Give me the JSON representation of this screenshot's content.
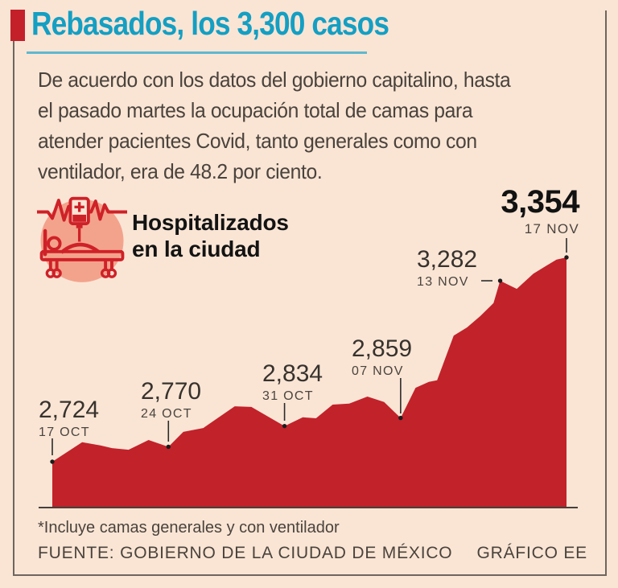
{
  "header": {
    "title": "Rebasados, los 3,300 casos",
    "title_color": "#149fc3",
    "bullet_color": "#c3202a"
  },
  "intro": {
    "lines": [
      "De acuerdo con los datos del gobierno capitalino, hasta",
      "el pasado martes la ocupación total de camas para",
      "atender pacientes Covid, tanto generales como con",
      "ventilador, era de 48.2 por ciento."
    ]
  },
  "chart_header": {
    "icon": "hospital-bed-icon",
    "label_line1": "Hospitalizados",
    "label_line2": "en la ciudad"
  },
  "chart_data": {
    "type": "area",
    "title": "Hospitalizados en la ciudad",
    "x_unit": "días desde el 17 OCT",
    "area_color": "#c2222a",
    "x_range_labels": [
      "17 OCT",
      "17 NOV"
    ],
    "points": [
      [
        0,
        2724
      ],
      [
        1.8,
        2784
      ],
      [
        2.9,
        2774
      ],
      [
        3.6,
        2766
      ],
      [
        4.6,
        2761
      ],
      [
        5.8,
        2791
      ],
      [
        7,
        2770
      ],
      [
        7.9,
        2816
      ],
      [
        9.1,
        2828
      ],
      [
        11,
        2895
      ],
      [
        12,
        2893
      ],
      [
        14,
        2834
      ],
      [
        15.1,
        2861
      ],
      [
        15.9,
        2858
      ],
      [
        16.9,
        2900
      ],
      [
        17.9,
        2903
      ],
      [
        19,
        2925
      ],
      [
        20,
        2908
      ],
      [
        21,
        2859
      ],
      [
        21.9,
        2952
      ],
      [
        22.7,
        2970
      ],
      [
        23.2,
        2975
      ],
      [
        24.2,
        3113
      ],
      [
        25,
        3138
      ],
      [
        25.8,
        3173
      ],
      [
        26.6,
        3213
      ],
      [
        27,
        3282
      ],
      [
        28,
        3257
      ],
      [
        29,
        3304
      ],
      [
        29.8,
        3329
      ],
      [
        30.4,
        3347
      ],
      [
        31,
        3354
      ]
    ],
    "annotations": [
      {
        "value_label": "2,724",
        "date_label": "17 OCT",
        "day": 0,
        "value": 2724
      },
      {
        "value_label": "2,770",
        "date_label": "24 OCT",
        "day": 7,
        "value": 2770
      },
      {
        "value_label": "2,834",
        "date_label": "31 OCT",
        "day": 14,
        "value": 2834
      },
      {
        "value_label": "2,859",
        "date_label": "07 NOV",
        "day": 21,
        "value": 2859
      },
      {
        "value_label": "3,282",
        "date_label": "13 NOV",
        "day": 27,
        "value": 3282
      },
      {
        "value_label": "3,354",
        "date_label": "17 NOV",
        "day": 31,
        "value": 3354
      }
    ]
  },
  "footer": {
    "note": "*Incluye camas generales y con ventilador",
    "source": "FUENTE: GOBIERNO DE LA CIUDAD DE MÉXICO",
    "credit": "GRÁFICO EE"
  }
}
